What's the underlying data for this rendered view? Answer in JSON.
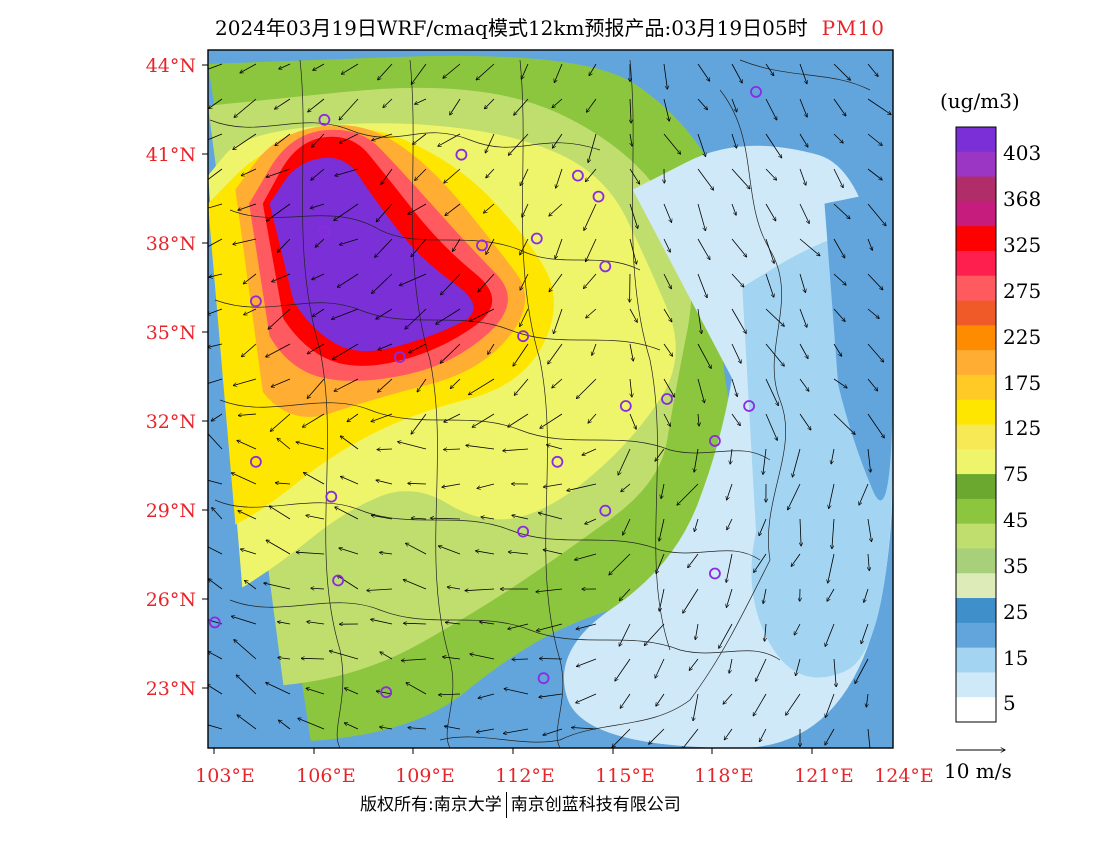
{
  "title": {
    "main": "2024年03月19日WRF/cmaq模式12km预报产品:03月19日05时",
    "pollutant": "PM10"
  },
  "colorbar": {
    "unit": "(ug/m3)",
    "levels": [
      "403",
      "368",
      "325",
      "275",
      "225",
      "175",
      "125",
      "75",
      "45",
      "35",
      "25",
      "15",
      "5"
    ],
    "colors": [
      "#7b2fd6",
      "#9b35c4",
      "#b02d6a",
      "#c51c7e",
      "#ff0000",
      "#ff1f4f",
      "#ff5a5f",
      "#f05a28",
      "#ff8c00",
      "#ffae33",
      "#ffc926",
      "#ffe600",
      "#f7e855",
      "#eef56a",
      "#6aa830",
      "#8cc63f",
      "#c0de6e",
      "#a8d07a",
      "#dcebb8",
      "#3f8fcb",
      "#62a5dc",
      "#a3d4f2",
      "#cfe9f8",
      "#ffffff"
    ]
  },
  "wind_legend": {
    "label": "10 m/s"
  },
  "axes": {
    "lat_labels": [
      "44°N",
      "41°N",
      "38°N",
      "35°N",
      "32°N",
      "29°N",
      "26°N",
      "23°N"
    ],
    "lon_labels": [
      "103°E",
      "106°E",
      "109°E",
      "112°E",
      "115°E",
      "118°E",
      "121°E",
      "124°E"
    ]
  },
  "footer": {
    "left": "版权所有:南京大学",
    "right": "南京创蓝科技有限公司"
  },
  "colors": {
    "accent_red": "#e8242a"
  },
  "map_fields": {
    "blobs": [
      {
        "c": "#8cc63f",
        "pts": [
          [
            0.0,
            0.02
          ],
          [
            0.55,
            0.0
          ],
          [
            0.7,
            0.1
          ],
          [
            0.78,
            0.25
          ],
          [
            0.74,
            0.4
          ],
          [
            0.78,
            0.6
          ],
          [
            0.7,
            0.78
          ],
          [
            0.58,
            0.8
          ],
          [
            0.45,
            0.86
          ],
          [
            0.3,
            0.98
          ],
          [
            0.0,
            1.0
          ]
        ]
      },
      {
        "c": "#c0de6e",
        "pts": [
          [
            0.0,
            0.08
          ],
          [
            0.4,
            0.04
          ],
          [
            0.62,
            0.14
          ],
          [
            0.72,
            0.3
          ],
          [
            0.68,
            0.5
          ],
          [
            0.66,
            0.62
          ],
          [
            0.52,
            0.72
          ],
          [
            0.4,
            0.8
          ],
          [
            0.22,
            0.9
          ],
          [
            0.0,
            0.92
          ]
        ]
      },
      {
        "c": "#eef56a",
        "pts": [
          [
            0.0,
            0.18
          ],
          [
            0.05,
            0.12
          ],
          [
            0.25,
            0.1
          ],
          [
            0.45,
            0.12
          ],
          [
            0.58,
            0.18
          ],
          [
            0.64,
            0.3
          ],
          [
            0.7,
            0.44
          ],
          [
            0.62,
            0.56
          ],
          [
            0.5,
            0.66
          ],
          [
            0.4,
            0.68
          ],
          [
            0.3,
            0.62
          ],
          [
            0.2,
            0.66
          ],
          [
            0.1,
            0.74
          ],
          [
            0.0,
            0.8
          ]
        ]
      },
      {
        "c": "#ffe600",
        "pts": [
          [
            0.0,
            0.22
          ],
          [
            0.08,
            0.14
          ],
          [
            0.22,
            0.1
          ],
          [
            0.36,
            0.16
          ],
          [
            0.46,
            0.26
          ],
          [
            0.52,
            0.36
          ],
          [
            0.46,
            0.48
          ],
          [
            0.3,
            0.52
          ],
          [
            0.18,
            0.58
          ],
          [
            0.08,
            0.66
          ],
          [
            0.0,
            0.7
          ]
        ]
      },
      {
        "c": "#ffae33",
        "pts": [
          [
            0.04,
            0.2
          ],
          [
            0.1,
            0.12
          ],
          [
            0.22,
            0.1
          ],
          [
            0.32,
            0.16
          ],
          [
            0.42,
            0.28
          ],
          [
            0.48,
            0.36
          ],
          [
            0.4,
            0.46
          ],
          [
            0.24,
            0.5
          ],
          [
            0.12,
            0.54
          ],
          [
            0.04,
            0.44
          ]
        ]
      },
      {
        "c": "#ff5a5f",
        "pts": [
          [
            0.06,
            0.22
          ],
          [
            0.12,
            0.12
          ],
          [
            0.22,
            0.11
          ],
          [
            0.28,
            0.17
          ],
          [
            0.38,
            0.28
          ],
          [
            0.46,
            0.36
          ],
          [
            0.36,
            0.45
          ],
          [
            0.22,
            0.48
          ],
          [
            0.12,
            0.46
          ],
          [
            0.06,
            0.36
          ]
        ]
      },
      {
        "c": "#ff0000",
        "pts": [
          [
            0.08,
            0.22
          ],
          [
            0.13,
            0.13
          ],
          [
            0.21,
            0.12
          ],
          [
            0.26,
            0.18
          ],
          [
            0.34,
            0.28
          ],
          [
            0.44,
            0.36
          ],
          [
            0.34,
            0.43
          ],
          [
            0.22,
            0.46
          ],
          [
            0.14,
            0.43
          ],
          [
            0.08,
            0.34
          ]
        ]
      },
      {
        "c": "#7b2fd6",
        "pts": [
          [
            0.09,
            0.22
          ],
          [
            0.13,
            0.16
          ],
          [
            0.2,
            0.15
          ],
          [
            0.24,
            0.21
          ],
          [
            0.31,
            0.3
          ],
          [
            0.41,
            0.37
          ],
          [
            0.33,
            0.41
          ],
          [
            0.22,
            0.44
          ],
          [
            0.15,
            0.4
          ],
          [
            0.1,
            0.32
          ]
        ]
      },
      {
        "c": "#cfe9f8",
        "pts": [
          [
            0.62,
            0.2
          ],
          [
            0.78,
            0.12
          ],
          [
            1.0,
            0.18
          ],
          [
            1.0,
            1.0
          ],
          [
            0.55,
            1.0
          ],
          [
            0.5,
            0.86
          ],
          [
            0.68,
            0.74
          ],
          [
            0.75,
            0.56
          ],
          [
            0.78,
            0.38
          ]
        ]
      },
      {
        "c": "#a3d4f2",
        "pts": [
          [
            0.78,
            0.34
          ],
          [
            0.88,
            0.28
          ],
          [
            1.0,
            0.24
          ],
          [
            1.0,
            0.86
          ],
          [
            0.86,
            0.92
          ],
          [
            0.78,
            0.78
          ],
          [
            0.82,
            0.6
          ]
        ]
      },
      {
        "c": "#62a5dc",
        "pts": [
          [
            0.9,
            0.22
          ],
          [
            1.0,
            0.2
          ],
          [
            1.0,
            0.7
          ],
          [
            0.94,
            0.56
          ],
          [
            0.9,
            0.4
          ]
        ]
      }
    ],
    "cities": [
      [
        0.8,
        0.06
      ],
      [
        0.17,
        0.1
      ],
      [
        0.37,
        0.15
      ],
      [
        0.54,
        0.18
      ],
      [
        0.57,
        0.21
      ],
      [
        0.17,
        0.26
      ],
      [
        0.4,
        0.28
      ],
      [
        0.48,
        0.27
      ],
      [
        0.58,
        0.31
      ],
      [
        0.07,
        0.36
      ],
      [
        0.46,
        0.41
      ],
      [
        0.28,
        0.44
      ],
      [
        0.61,
        0.51
      ],
      [
        0.67,
        0.5
      ],
      [
        0.79,
        0.51
      ],
      [
        0.07,
        0.59
      ],
      [
        0.51,
        0.59
      ],
      [
        0.74,
        0.56
      ],
      [
        0.18,
        0.64
      ],
      [
        0.58,
        0.66
      ],
      [
        0.46,
        0.69
      ],
      [
        0.19,
        0.76
      ],
      [
        0.74,
        0.75
      ],
      [
        0.01,
        0.82
      ],
      [
        0.26,
        0.92
      ],
      [
        0.49,
        0.9
      ]
    ]
  }
}
